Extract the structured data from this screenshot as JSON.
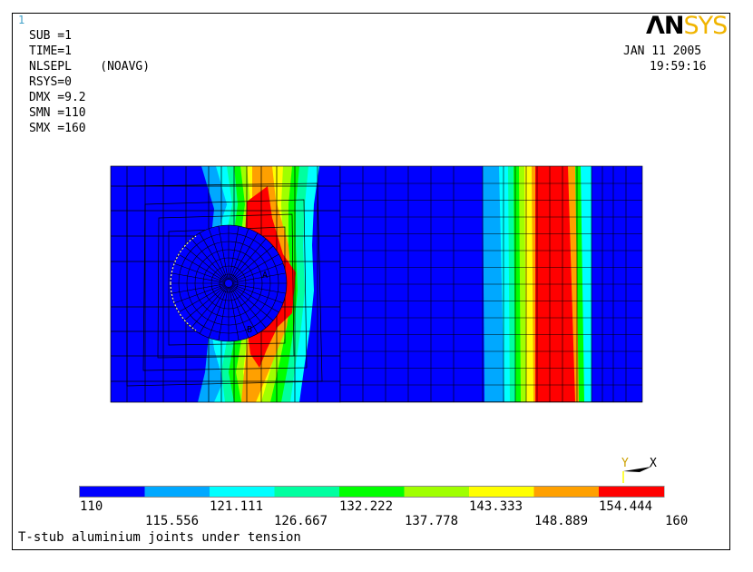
{
  "window_number": "1",
  "info_lines": [
    "SUB =1",
    "TIME=1",
    "NLSEPL    (NOAVG)",
    "RSYS=0",
    "DMX =9.2",
    "SMN =110",
    "SMX =160"
  ],
  "logo": {
    "part1": "ΛN",
    "part2": "SYS"
  },
  "date": "JAN 11 2005",
  "time": "19:59:16",
  "triad": {
    "y": "Y",
    "x": "X"
  },
  "legend": {
    "colors": [
      "#0000ff",
      "#00a8ff",
      "#00ffff",
      "#00ffa0",
      "#00ff00",
      "#a0ff00",
      "#ffff00",
      "#ffa000",
      "#ff0000"
    ],
    "top_labels": [
      "110",
      "121.111",
      "132.222",
      "143.333",
      "154.444"
    ],
    "bottom_labels": [
      "115.556",
      "126.667",
      "137.778",
      "148.889",
      "160"
    ]
  },
  "caption": "T-stub aluminium joints under tension",
  "node_labels": {
    "a": "A",
    "b": "B"
  }
}
